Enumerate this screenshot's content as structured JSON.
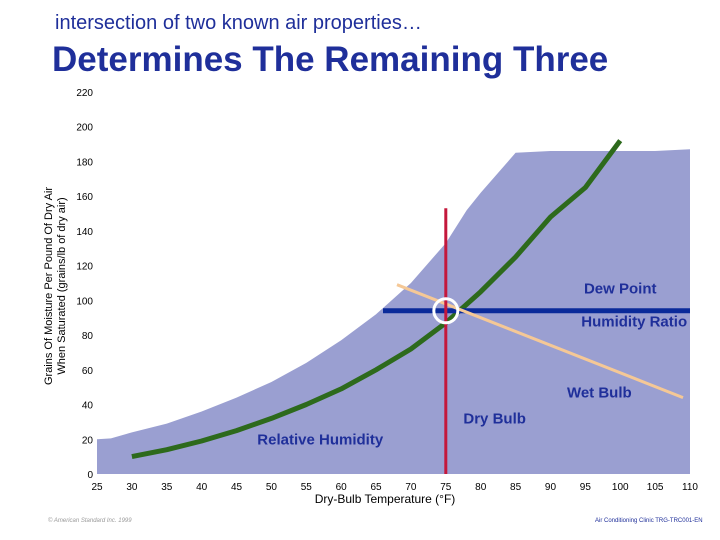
{
  "header": {
    "subtitle": "intersection of two known air properties…",
    "title": "Determines The Remaining Three"
  },
  "footer": {
    "left": "© American Standard Inc. 1999",
    "right": "Air Conditioning Clinic TRG-TRC001-EN"
  },
  "colors": {
    "region": "#9a9fd1",
    "dry_bulb": "#c4183c",
    "humidity_ratio": "#0a2a9a",
    "wet_bulb": "#f5c896",
    "relative_humidity": "#2d6a1c",
    "label": "#1f2f9a"
  },
  "chart_data": {
    "type": "line",
    "xlabel": "Dry-Bulb Temperature (°F)",
    "ylabel": "Grains Of Moisture Per Pound Of Dry Air When Saturated (grains/lb of dry air)",
    "x_ticks": [
      25,
      30,
      35,
      40,
      45,
      50,
      55,
      60,
      65,
      70,
      75,
      80,
      85,
      90,
      95,
      100,
      105,
      110
    ],
    "y_ticks": [
      0,
      20,
      40,
      60,
      80,
      100,
      120,
      140,
      160,
      180,
      200,
      220
    ],
    "xlim": [
      25,
      110
    ],
    "ylim": [
      0,
      220
    ],
    "saturation_region": {
      "x": [
        25,
        27,
        30,
        35,
        40,
        45,
        50,
        55,
        60,
        65,
        70,
        75,
        78,
        80,
        85,
        90,
        95,
        100,
        105,
        110
      ],
      "y": [
        20,
        20.5,
        24,
        29,
        36,
        44,
        53,
        64,
        77,
        92,
        110,
        133,
        152,
        162,
        185,
        186,
        186,
        186,
        186,
        187
      ]
    },
    "series": [
      {
        "name": "Relative Humidity",
        "x": [
          30,
          35,
          40,
          45,
          50,
          55,
          60,
          65,
          70,
          75,
          80,
          85,
          90,
          95,
          100
        ],
        "y": [
          10,
          14,
          19,
          25,
          32,
          40,
          49,
          60,
          72,
          87,
          105,
          125,
          148,
          165,
          192
        ]
      },
      {
        "name": "Dry Bulb",
        "x": [
          75,
          75
        ],
        "y": [
          0,
          153
        ]
      },
      {
        "name": "Humidity Ratio",
        "x": [
          66,
          110
        ],
        "y": [
          94,
          94
        ]
      },
      {
        "name": "Wet Bulb",
        "x": [
          68,
          109
        ],
        "y": [
          109,
          44
        ]
      }
    ],
    "intersection": {
      "x": 75,
      "y": 94
    },
    "annotations": [
      {
        "text": "Dew Point",
        "x": 100,
        "y": 104
      },
      {
        "text": "Humidity Ratio",
        "x": 102,
        "y": 85
      },
      {
        "text": "Wet Bulb",
        "x": 97,
        "y": 44
      },
      {
        "text": "Dry Bulb",
        "x": 82,
        "y": 29
      },
      {
        "text": "Relative Humidity",
        "x": 57,
        "y": 17
      }
    ],
    "grid": false,
    "legend": "none"
  }
}
